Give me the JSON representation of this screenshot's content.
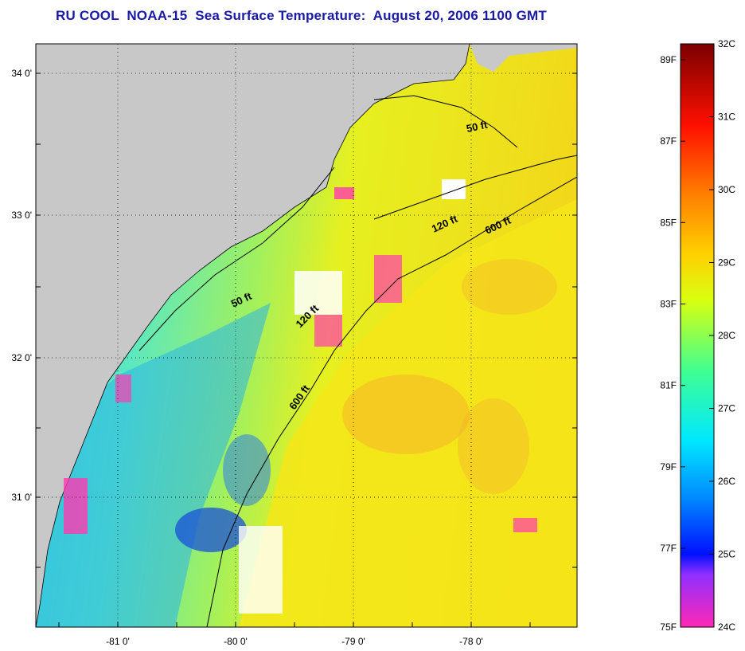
{
  "title": "RU COOL  NOAA-15  Sea Surface Temperature:  August 20, 2006 1100 GMT",
  "map": {
    "longitude_ticks": [
      "-81 0'",
      "-80 0'",
      "-79 0'",
      "-78 0'"
    ],
    "latitude_ticks": [
      "34 0'",
      "33 0'",
      "32 0'",
      "31 0'"
    ],
    "contours": [
      {
        "label": "50 ft"
      },
      {
        "label": "120 ft"
      },
      {
        "label": "600 ft"
      },
      {
        "label": "50 ft"
      },
      {
        "label": "120 ft"
      },
      {
        "label": "600 ft"
      }
    ],
    "colors": {
      "land": "#c8c8c8",
      "cloud": "#ffffff",
      "grid": "#000000"
    }
  },
  "colorbar": {
    "fahrenheit_labels": [
      "89F",
      "87F",
      "85F",
      "83F",
      "81F",
      "79F",
      "77F",
      "75F"
    ],
    "celsius_labels": [
      "32C",
      "31C",
      "30C",
      "29C",
      "28C",
      "27C",
      "26C",
      "25C",
      "24C"
    ],
    "colors": [
      "#ff28b4",
      "#8a28ff",
      "#0010ff",
      "#0090ff",
      "#00e8ff",
      "#40ff90",
      "#f0ff00",
      "#ff9000",
      "#ff1000",
      "#7a0000"
    ]
  }
}
